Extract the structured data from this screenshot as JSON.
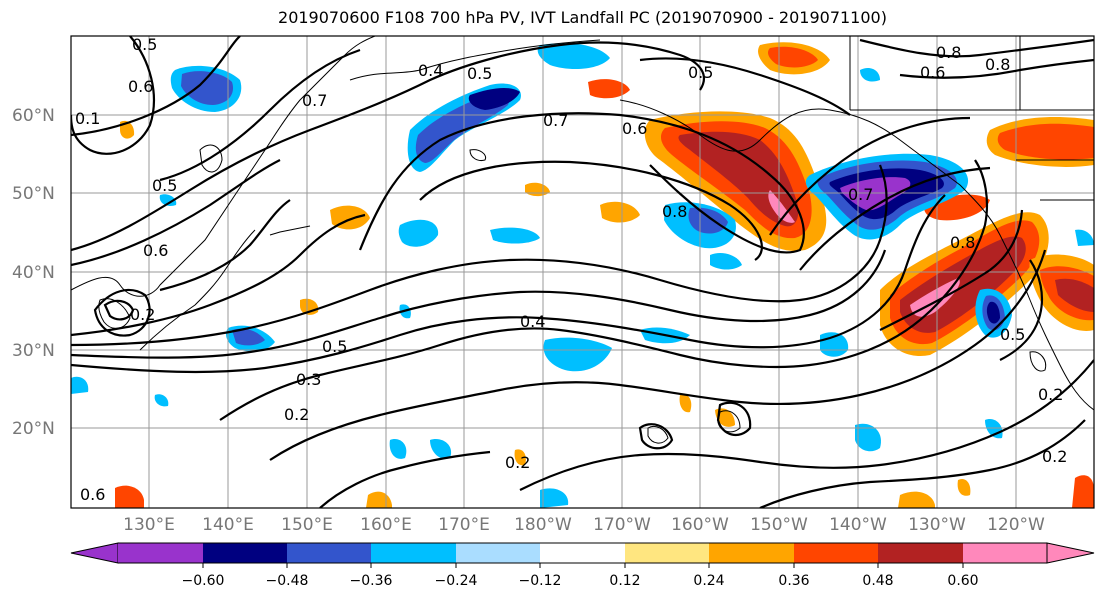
{
  "title": "2019070600 F108 700 hPa PV, IVT Landfall PC (2019070900 - 2019071100)",
  "lat_labels": [
    "60°N",
    "50°N",
    "40°N",
    "30°N",
    "20°N"
  ],
  "lon_labels": [
    "130°E",
    "140°E",
    "150°E",
    "160°E",
    "170°E",
    "180°W",
    "170°W",
    "160°W",
    "150°W",
    "140°W",
    "130°W",
    "120°W"
  ],
  "colorbar": {
    "colors": [
      "#9933cc",
      "#000080",
      "#3355cc",
      "#00bfff",
      "#aaddff",
      "#ffffff",
      "#ffe680",
      "#ffa500",
      "#ff4500",
      "#b22222",
      "#ff88bb"
    ],
    "tick_labels": [
      "−0.60",
      "−0.48",
      "−0.36",
      "−0.24",
      "−0.12",
      "0.12",
      "0.24",
      "0.36",
      "0.48",
      "0.60"
    ]
  },
  "contour_labels": [
    "0.5",
    "0.6",
    "0.1",
    "0.4",
    "0.5",
    "0.7",
    "0.7",
    "0.6",
    "0.5",
    "0.8",
    "0.6",
    "0.5",
    "0.6",
    "0.8",
    "0.7",
    "0.8",
    "0.4",
    "0.5",
    "0.3",
    "0.2",
    "0.2",
    "0.2",
    "0.2",
    "0.5",
    "0.6",
    "0.2",
    "0.8"
  ]
}
